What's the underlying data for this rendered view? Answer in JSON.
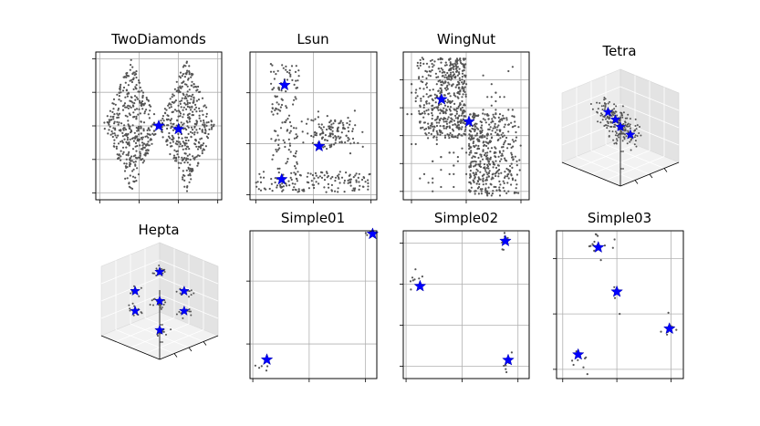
{
  "figure": {
    "layout": "2 rows x 4 columns of scatter subplots"
  },
  "colors": {
    "points": "#555555",
    "centroids": "#0000ff",
    "grid": "#b0b0b0"
  },
  "chart_data": [
    {
      "title": "TwoDiamonds",
      "type": "scatter",
      "projection": "2d",
      "grid": true,
      "xlim": [
        -0.2,
        6.2
      ],
      "ylim": [
        -2.2,
        2.2
      ],
      "xticks": [
        0,
        2,
        4,
        6
      ],
      "yticks": [
        -2,
        -1,
        0,
        1,
        2
      ],
      "point_shape": "two-diamonds",
      "n_points": 800,
      "centroids": [
        [
          3.0,
          0.0
        ],
        [
          4.0,
          -0.1
        ]
      ]
    },
    {
      "title": "Lsun",
      "type": "scatter",
      "projection": "2d",
      "grid": true,
      "xlim": [
        -0.2,
        4.2
      ],
      "ylim": [
        -0.2,
        5.6
      ],
      "xticks": [
        0,
        2,
        4
      ],
      "yticks": [
        0,
        2,
        4
      ],
      "point_shape": "L-shape plus blob",
      "n_points": 400,
      "centroids": [
        [
          1.0,
          4.3
        ],
        [
          0.9,
          0.6
        ],
        [
          2.2,
          1.9
        ]
      ]
    },
    {
      "title": "WingNut",
      "type": "scatter",
      "projection": "2d",
      "grid": true,
      "xlim": [
        -0.3,
        4.3
      ],
      "ylim": [
        -0.3,
        5.0
      ],
      "xticks": [
        0,
        2,
        4
      ],
      "yticks": [
        0,
        1,
        2,
        3,
        4
      ],
      "point_shape": "wing-nut",
      "n_points": 1000,
      "centroids": [
        [
          1.1,
          3.3
        ],
        [
          2.1,
          2.5
        ]
      ]
    },
    {
      "title": "Tetra",
      "type": "scatter",
      "projection": "3d",
      "grid": true,
      "point_shape": "tetrahedral clusters",
      "n_points": 400,
      "centroids": [
        [
          0.0,
          0.5,
          0.7
        ],
        [
          0.4,
          0.4,
          0.3
        ],
        [
          -0.5,
          -0.3,
          0.0
        ],
        [
          0.4,
          0.0,
          -0.1
        ]
      ]
    },
    {
      "title": "Hepta",
      "type": "scatter",
      "projection": "3d",
      "grid": true,
      "point_shape": "seven clusters",
      "n_points": 212,
      "centroids": [
        [
          0,
          0,
          0
        ],
        [
          0,
          0,
          3
        ],
        [
          0,
          0,
          -3
        ],
        [
          3,
          0,
          0
        ],
        [
          -3,
          0,
          0
        ],
        [
          0,
          3,
          0
        ],
        [
          0,
          -3,
          0
        ]
      ]
    },
    {
      "title": "Simple01",
      "type": "scatter",
      "projection": "2d",
      "grid": true,
      "xlim": [
        -0.2,
        8.8
      ],
      "ylim": [
        -0.2,
        9.2
      ],
      "xticks": [
        0,
        4,
        8
      ],
      "yticks": [
        2,
        6
      ],
      "n_points": 20,
      "centroids": [
        [
          1.0,
          1.0
        ],
        [
          8.5,
          9.0
        ]
      ]
    },
    {
      "title": "Simple02",
      "type": "scatter",
      "projection": "2d",
      "grid": true,
      "xlim": [
        -0.2,
        8.8
      ],
      "ylim": [
        -0.6,
        6.6
      ],
      "xticks": [
        0,
        4,
        8
      ],
      "yticks": [
        0,
        2,
        4,
        6
      ],
      "n_points": 30,
      "centroids": [
        [
          1.0,
          3.9
        ],
        [
          7.1,
          6.1
        ],
        [
          7.3,
          0.3
        ]
      ]
    },
    {
      "title": "Simple03",
      "type": "scatter",
      "projection": "2d",
      "grid": true,
      "xlim": [
        -0.4,
        7.8
      ],
      "ylim": [
        -0.5,
        7.5
      ],
      "xticks": [
        0,
        3.5,
        7
      ],
      "yticks": [
        0,
        3,
        6
      ],
      "n_points": 40,
      "centroids": [
        [
          2.3,
          6.6
        ],
        [
          3.5,
          4.2
        ],
        [
          6.9,
          2.2
        ],
        [
          1.0,
          0.8
        ]
      ]
    }
  ]
}
